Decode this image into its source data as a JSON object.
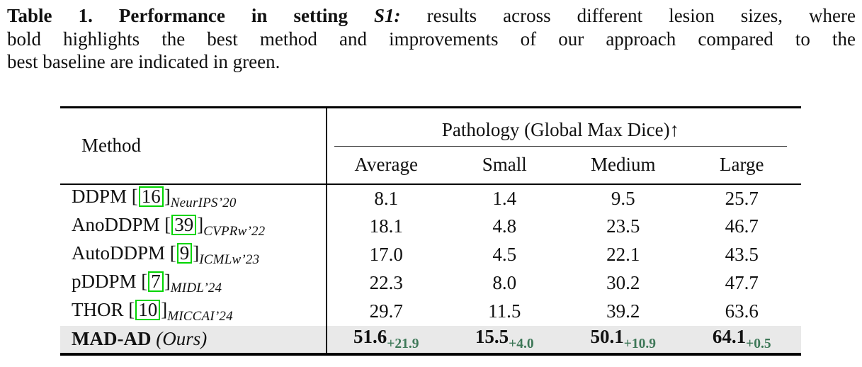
{
  "caption": {
    "bold_label": "Table 1. Performance in setting",
    "setting_italic": "S1:",
    "line1_rest": "results across different lesion sizes, where",
    "line2": "bold highlights the best method and improvements of our approach compared to the",
    "line3": "best baseline are indicated in green."
  },
  "table": {
    "cite_open": "[",
    "cite_close": "]",
    "header": {
      "method": "Method",
      "group": "Pathology (Global Max Dice)↑",
      "columns": [
        "Average",
        "Small",
        "Medium",
        "Large"
      ]
    },
    "rows": [
      {
        "name": "DDPM",
        "cite": "16",
        "venue": "NeurIPS’20",
        "values": [
          "8.1",
          "1.4",
          "9.5",
          "25.7"
        ]
      },
      {
        "name": "AnoDDPM",
        "cite": "39",
        "venue": "CVPRw’22",
        "values": [
          "18.1",
          "4.8",
          "23.5",
          "46.7"
        ]
      },
      {
        "name": "AutoDDPM",
        "cite": "9",
        "venue": "ICMLw’23",
        "values": [
          "17.0",
          "4.5",
          "22.1",
          "43.5"
        ]
      },
      {
        "name": "pDDPM",
        "cite": "7",
        "venue": "MIDL’24",
        "values": [
          "22.3",
          "8.0",
          "30.2",
          "47.7"
        ]
      },
      {
        "name": "THOR",
        "cite": "10",
        "venue": "MICCAI’24",
        "values": [
          "29.7",
          "11.5",
          "39.2",
          "63.6"
        ]
      }
    ],
    "ours": {
      "name": "MAD-AD",
      "suffix": "(Ours)",
      "values": [
        "51.6",
        "15.5",
        "50.1",
        "64.1"
      ],
      "gains": [
        "+21.9",
        "+4.0",
        "+10.9",
        "+0.5"
      ]
    }
  },
  "colors": {
    "citation_box_green": "#00d500",
    "improvement_green": "#3e7858",
    "highlight_row_gray": "#e9e9e9"
  }
}
